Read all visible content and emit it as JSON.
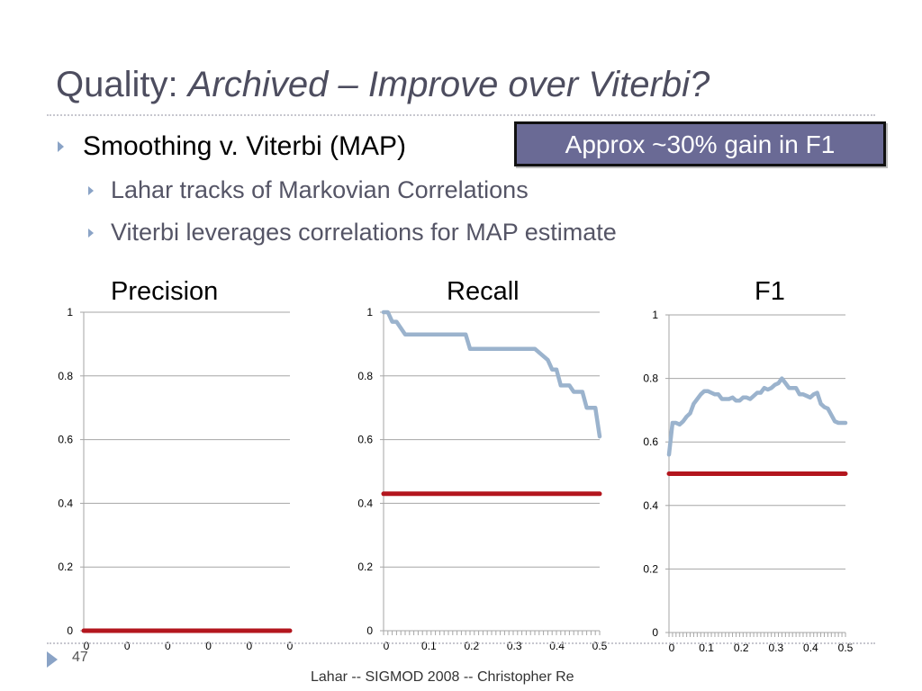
{
  "slide": {
    "title_plain": "Quality: ",
    "title_italic": "Archived – Improve over Viterbi?",
    "bullets": {
      "main": "Smoothing v. Viterbi (MAP)",
      "sub1": "Lahar tracks of Markovian Correlations",
      "sub2": "Viterbi leverages correlations for MAP estimate"
    },
    "callout": "Approx ~30% gain in F1",
    "slide_number": "47",
    "footer": "Lahar -- SIGMOD 2008 -- Christopher Re"
  },
  "colors": {
    "smoothing_series": "#9bb3cd",
    "viterbi_series": "#b3161e",
    "gridline": "#a6a6a6",
    "accent_box": "#6a6a95",
    "bullet": "#8aa3c6"
  },
  "chart_data": [
    {
      "type": "line",
      "title": "Precision",
      "ylim": [
        0,
        1
      ],
      "yticks": [
        "0",
        "0.2",
        "0.4",
        "0.6",
        "0.8",
        "1"
      ],
      "xtick_labels": [
        "0",
        "0",
        "0",
        "0",
        "0",
        "0"
      ],
      "grid": true,
      "legend": "none",
      "series": [
        {
          "x": [
            0,
            1
          ],
          "values": [
            0,
            0
          ],
          "color": "#b3161e"
        }
      ]
    },
    {
      "type": "line",
      "title": "Recall",
      "ylim": [
        0,
        1
      ],
      "xlim": [
        0,
        0.5
      ],
      "yticks": [
        "0",
        "0.2",
        "0.4",
        "0.6",
        "0.8",
        "1"
      ],
      "xtick_labels": [
        "0",
        "0.1",
        "0.2",
        "0.3",
        "0.4",
        "0.5"
      ],
      "grid": true,
      "legend": "none",
      "series": [
        {
          "color": "#9bb3cd",
          "x": [
            0,
            0.01,
            0.02,
            0.03,
            0.05,
            0.1,
            0.15,
            0.19,
            0.2,
            0.25,
            0.3,
            0.35,
            0.38,
            0.39,
            0.4,
            0.41,
            0.42,
            0.43,
            0.44,
            0.45,
            0.46,
            0.47,
            0.48,
            0.49,
            0.5
          ],
          "values": [
            1.0,
            1.0,
            0.97,
            0.97,
            0.93,
            0.93,
            0.93,
            0.93,
            0.885,
            0.885,
            0.885,
            0.885,
            0.85,
            0.82,
            0.82,
            0.77,
            0.77,
            0.77,
            0.75,
            0.75,
            0.75,
            0.7,
            0.7,
            0.7,
            0.61
          ]
        },
        {
          "color": "#b3161e",
          "x": [
            0,
            0.5
          ],
          "values": [
            0.43,
            0.43
          ]
        }
      ]
    },
    {
      "type": "line",
      "title": "F1",
      "ylim": [
        0,
        1
      ],
      "xlim": [
        0,
        0.5
      ],
      "yticks": [
        "0",
        "0.2",
        "0.4",
        "0.6",
        "0.8",
        "1"
      ],
      "xtick_labels": [
        "0",
        "0.1",
        "0.2",
        "0.3",
        "0.4",
        "0.5"
      ],
      "grid": true,
      "legend": "none",
      "series": [
        {
          "color": "#9bb3cd",
          "x": [
            0,
            0.01,
            0.02,
            0.03,
            0.04,
            0.05,
            0.06,
            0.07,
            0.08,
            0.09,
            0.1,
            0.11,
            0.12,
            0.13,
            0.14,
            0.15,
            0.16,
            0.17,
            0.18,
            0.19,
            0.2,
            0.21,
            0.22,
            0.23,
            0.24,
            0.25,
            0.26,
            0.27,
            0.28,
            0.29,
            0.3,
            0.31,
            0.32,
            0.33,
            0.34,
            0.35,
            0.36,
            0.37,
            0.38,
            0.39,
            0.4,
            0.41,
            0.42,
            0.43,
            0.44,
            0.45,
            0.46,
            0.47,
            0.48,
            0.49,
            0.5
          ],
          "values": [
            0.56,
            0.66,
            0.66,
            0.655,
            0.665,
            0.68,
            0.69,
            0.72,
            0.735,
            0.75,
            0.76,
            0.76,
            0.755,
            0.75,
            0.75,
            0.735,
            0.735,
            0.735,
            0.74,
            0.73,
            0.73,
            0.74,
            0.74,
            0.735,
            0.745,
            0.755,
            0.755,
            0.77,
            0.765,
            0.77,
            0.78,
            0.785,
            0.8,
            0.785,
            0.77,
            0.77,
            0.77,
            0.75,
            0.75,
            0.745,
            0.74,
            0.75,
            0.755,
            0.72,
            0.71,
            0.705,
            0.685,
            0.665,
            0.66,
            0.66,
            0.66
          ]
        },
        {
          "color": "#b3161e",
          "x": [
            0,
            0.5
          ],
          "values": [
            0.5,
            0.5
          ]
        }
      ]
    }
  ]
}
